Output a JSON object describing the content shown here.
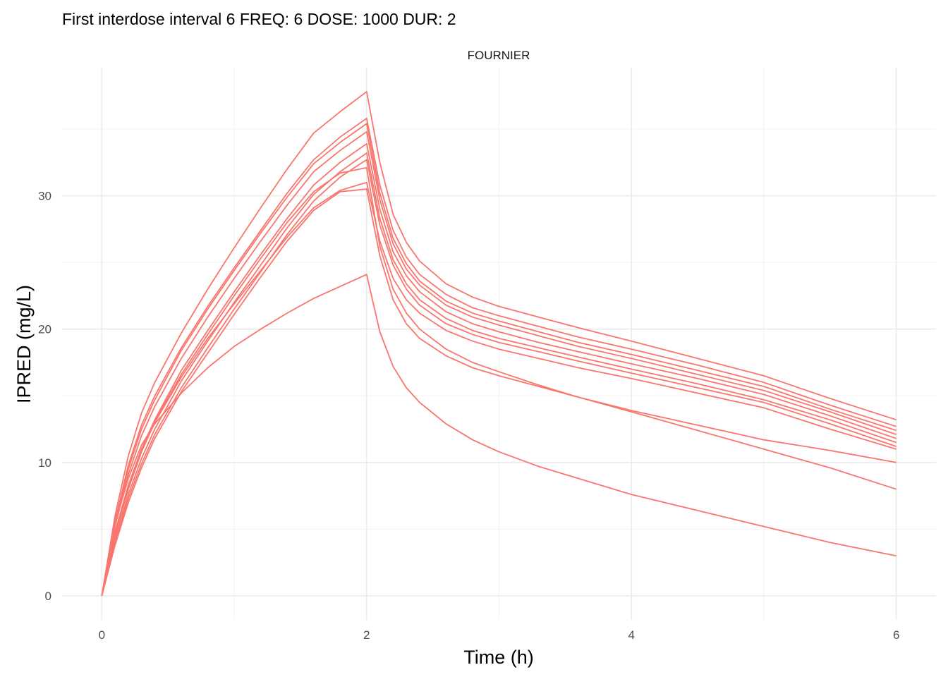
{
  "title": "First interdose interval 6 FREQ: 6 DOSE: 1000 DUR: 2",
  "chart_data": {
    "type": "line",
    "title": "First interdose interval 6 FREQ: 6 DOSE: 1000 DUR: 2",
    "facet_label": "FOURNIER",
    "xlabel": "Time (h)",
    "ylabel": "IPRED (mg/L)",
    "xlim": [
      -0.3,
      6.3
    ],
    "ylim": [
      -1.8,
      39.6
    ],
    "x_ticks": [
      0,
      2,
      4,
      6
    ],
    "x_tick_labels": [
      "0",
      "2",
      "4",
      "6"
    ],
    "y_ticks": [
      0,
      10,
      20,
      30
    ],
    "y_tick_labels": [
      "0",
      "10",
      "20",
      "30"
    ],
    "grid": true,
    "legend": "none",
    "color": "#f8766d",
    "x": [
      0,
      0.1,
      0.2,
      0.3,
      0.4,
      0.6,
      0.8,
      1.0,
      1.2,
      1.4,
      1.6,
      1.8,
      2.0,
      2.1,
      2.2,
      2.3,
      2.4,
      2.6,
      2.8,
      3.0,
      3.3,
      3.6,
      4.0,
      4.5,
      5.0,
      5.5,
      6.0
    ],
    "series": [
      {
        "values": [
          0,
          6.0,
          10.5,
          13.7,
          16.0,
          19.7,
          23.0,
          26.1,
          29.1,
          32.0,
          34.7,
          36.3,
          37.8,
          32.5,
          28.6,
          26.5,
          25.1,
          23.4,
          22.4,
          21.7,
          20.9,
          20.1,
          19.1,
          17.8,
          16.5,
          14.8,
          13.2
        ]
      },
      {
        "values": [
          0,
          5.6,
          9.8,
          12.8,
          15.0,
          18.6,
          21.7,
          24.6,
          27.4,
          30.2,
          32.7,
          34.4,
          35.8,
          30.8,
          27.4,
          25.4,
          24.1,
          22.6,
          21.6,
          21.0,
          20.2,
          19.4,
          18.5,
          17.3,
          16.0,
          14.3,
          12.7
        ]
      },
      {
        "values": [
          0,
          5.4,
          9.5,
          12.5,
          14.7,
          18.4,
          21.5,
          24.4,
          27.2,
          29.9,
          32.4,
          34.0,
          35.4,
          30.2,
          26.8,
          24.9,
          23.6,
          22.1,
          21.2,
          20.6,
          19.8,
          19.0,
          18.1,
          16.9,
          15.7,
          14.0,
          12.4
        ]
      },
      {
        "values": [
          0,
          5.2,
          9.1,
          12.0,
          14.2,
          17.8,
          20.9,
          23.8,
          26.6,
          29.3,
          31.8,
          33.4,
          34.8,
          29.7,
          26.4,
          24.5,
          23.3,
          21.8,
          20.9,
          20.3,
          19.5,
          18.7,
          17.8,
          16.6,
          15.4,
          13.8,
          12.1
        ]
      },
      {
        "values": [
          0,
          4.6,
          8.2,
          11.0,
          13.2,
          16.9,
          19.9,
          22.8,
          25.6,
          28.3,
          30.8,
          32.5,
          33.9,
          29.0,
          25.8,
          24.0,
          22.8,
          21.3,
          20.4,
          19.8,
          19.0,
          18.3,
          17.4,
          16.3,
          15.1,
          13.5,
          11.8
        ]
      },
      {
        "values": [
          0,
          4.2,
          7.6,
          10.3,
          12.5,
          16.1,
          19.1,
          22.0,
          24.8,
          27.6,
          30.1,
          31.8,
          33.2,
          28.3,
          25.2,
          23.4,
          22.2,
          20.8,
          19.9,
          19.3,
          18.6,
          17.9,
          17.0,
          15.9,
          14.7,
          13.2,
          11.5
        ]
      },
      {
        "values": [
          0,
          4.0,
          7.3,
          9.9,
          12.1,
          15.6,
          18.6,
          21.5,
          24.3,
          27.1,
          29.6,
          31.4,
          32.7,
          27.8,
          24.8,
          23.0,
          21.8,
          20.4,
          19.6,
          19.0,
          18.3,
          17.6,
          16.7,
          15.6,
          14.5,
          12.9,
          11.2
        ]
      },
      {
        "values": [
          0,
          4.5,
          8.0,
          10.8,
          13.0,
          16.4,
          19.3,
          21.9,
          24.4,
          26.9,
          29.1,
          30.4,
          31.0,
          26.6,
          23.8,
          22.2,
          21.2,
          19.9,
          19.1,
          18.5,
          17.8,
          17.1,
          16.3,
          15.2,
          14.1,
          12.5,
          11.0
        ]
      },
      {
        "values": [
          0,
          3.8,
          7.0,
          9.6,
          11.8,
          15.3,
          18.2,
          21.1,
          23.9,
          26.6,
          28.9,
          30.3,
          30.5,
          25.5,
          22.2,
          20.4,
          19.3,
          18.0,
          17.1,
          16.5,
          15.7,
          14.9,
          13.9,
          12.8,
          11.7,
          10.9,
          10.0
        ]
      },
      {
        "values": [
          0,
          5.4,
          8.8,
          11.3,
          12.9,
          15.2,
          17.1,
          18.7,
          20.0,
          21.2,
          22.3,
          23.2,
          24.1,
          19.8,
          17.2,
          15.6,
          14.5,
          12.9,
          11.7,
          10.8,
          9.7,
          8.8,
          7.6,
          6.4,
          5.2,
          4.0,
          3.0
        ]
      },
      {
        "values": [
          0,
          4.8,
          8.3,
          11.0,
          13.1,
          16.6,
          19.6,
          22.5,
          25.3,
          28.0,
          30.3,
          31.7,
          32.1,
          26.2,
          23.0,
          21.2,
          20.0,
          18.5,
          17.5,
          16.8,
          15.8,
          14.9,
          13.8,
          12.4,
          11.0,
          9.6,
          8.0
        ]
      }
    ]
  }
}
